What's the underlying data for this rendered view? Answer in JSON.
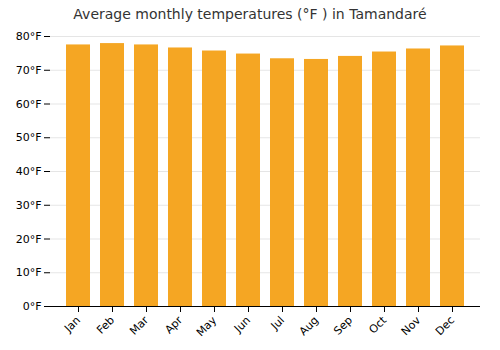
{
  "chart_data": {
    "type": "bar",
    "title": "Average monthly temperatures (°F ) in Tamandaré",
    "categories": [
      "Jan",
      "Feb",
      "Mar",
      "Apr",
      "May",
      "Jun",
      "Jul",
      "Aug",
      "Sep",
      "Oct",
      "Nov",
      "Dec"
    ],
    "values": [
      77.5,
      77.9,
      77.5,
      76.6,
      75.7,
      74.8,
      73.4,
      73.2,
      74.1,
      75.4,
      76.3,
      77.2
    ],
    "color": "#F5A623",
    "ylim": [
      0,
      80
    ],
    "yticks": [
      {
        "value": 0,
        "label": "0°F"
      },
      {
        "value": 10,
        "label": "10°F"
      },
      {
        "value": 20,
        "label": "20°F"
      },
      {
        "value": 30,
        "label": "30°F"
      },
      {
        "value": 40,
        "label": "40°F"
      },
      {
        "value": 50,
        "label": "50°F"
      },
      {
        "value": 60,
        "label": "60°F"
      },
      {
        "value": 70,
        "label": "70°F"
      },
      {
        "value": 80,
        "label": "80°F"
      }
    ],
    "grid": true
  }
}
